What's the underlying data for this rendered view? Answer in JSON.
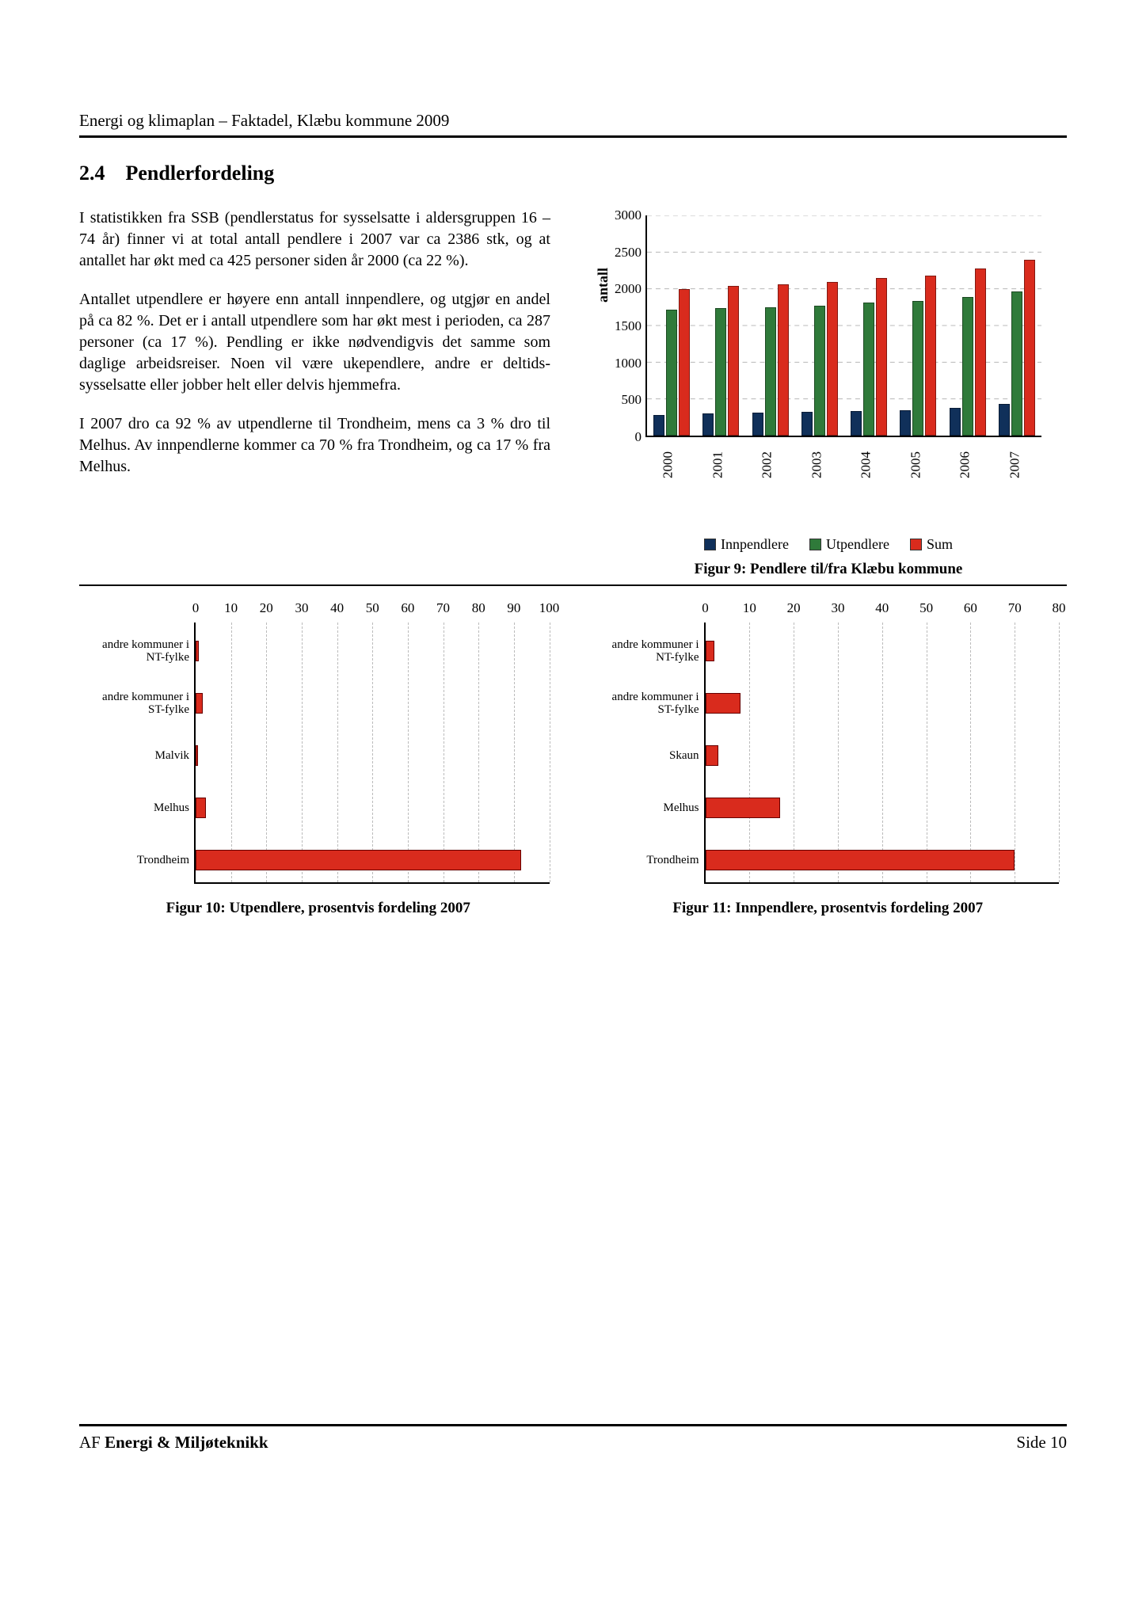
{
  "header": "Energi og klimaplan – Faktadel, Klæbu kommune 2009",
  "section_num": "2.4",
  "section_title": "Pendlerfordeling",
  "paragraphs": [
    "I statistikken fra SSB (pendlerstatus for sysselsatte i aldersgruppen 16 – 74 år) finner vi at total antall pendlere i 2007 var ca 2386 stk, og at antallet har økt med ca 425 personer siden år 2000 (ca 22 %).",
    "Antallet utpendlere er høyere enn antall innpendlere, og utgjør en andel på ca 82 %. Det er i antall utpendlere som har økt mest i perioden, ca 287 personer (ca 17 %). Pendling er ikke nødvendigvis det samme som daglige arbeidsreiser. Noen vil være ukependlere, andre er deltids-sysselsatte eller jobber helt eller delvis hjemmefra.",
    "I 2007 dro ca 92 % av utpendlerne til Trondheim, mens ca 3 % dro til Melhus. Av innpendlerne kommer ca 70 % fra Trondheim, og ca 17 % fra Melhus."
  ],
  "colors": {
    "innpendlere": "#10305a",
    "utpendlere": "#2f7a3a",
    "sum": "#d92b1d",
    "hbar": "#d92b1d",
    "grid": "#b8b8b8",
    "bg": "#ffffff"
  },
  "fig9": {
    "type": "grouped-bar",
    "ylabel": "antall",
    "ylim": [
      0,
      3000
    ],
    "ytick_step": 500,
    "years": [
      "2000",
      "2001",
      "2002",
      "2003",
      "2004",
      "2005",
      "2006",
      "2007"
    ],
    "series": [
      {
        "key": "innpendlere",
        "label": "Innpendlere",
        "values": [
          280,
          300,
          310,
          320,
          330,
          340,
          380,
          430
        ]
      },
      {
        "key": "utpendlere",
        "label": "Utpendlere",
        "values": [
          1700,
          1720,
          1740,
          1760,
          1800,
          1820,
          1880,
          1950
        ]
      },
      {
        "key": "sum",
        "label": "Sum",
        "values": [
          1980,
          2020,
          2050,
          2080,
          2130,
          2160,
          2260,
          2380
        ]
      }
    ],
    "caption": "Figur 9: Pendlere til/fra Klæbu kommune"
  },
  "fig10": {
    "type": "hbar",
    "xlim": [
      0,
      100
    ],
    "xtick_step": 10,
    "categories": [
      "andre kommuner i NT-fylke",
      "andre kommuner i ST-fylke",
      "Malvik",
      "Melhus",
      "Trondheim"
    ],
    "values": [
      1,
      2,
      0.6,
      3,
      92
    ],
    "caption": "Figur 10: Utpendlere, prosentvis fordeling 2007"
  },
  "fig11": {
    "type": "hbar",
    "xlim": [
      0,
      80
    ],
    "xtick_step": 10,
    "categories": [
      "andre kommuner i NT-fylke",
      "andre kommuner i ST-fylke",
      "Skaun",
      "Melhus",
      "Trondheim"
    ],
    "values": [
      2,
      8,
      3,
      17,
      70
    ],
    "caption": "Figur 11: Innpendlere, prosentvis fordeling 2007"
  },
  "footer_left_plain": "AF ",
  "footer_left_bold": "Energi & Miljøteknikk",
  "footer_right": "Side 10"
}
